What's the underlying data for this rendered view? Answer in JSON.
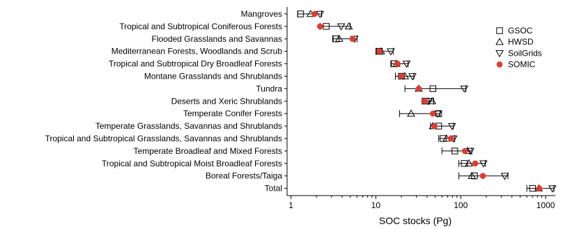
{
  "chart_data": {
    "type": "scatter",
    "xlabel": "SOC stocks (Pg)",
    "xscale": "log",
    "xlim": [
      1,
      1300
    ],
    "xticks": [
      1,
      10,
      100,
      1000
    ],
    "xtick_labels": [
      "1",
      "10",
      "100",
      "1000"
    ],
    "legend_position": "top-right",
    "grid": false,
    "categories": [
      "Mangroves",
      "Tropical and Subtropical Coniferous Forests",
      "Flooded Grasslands and Savannas",
      "Mediterranean Forests, Woodlands and Scrub",
      "Tropical and Subtropical Dry Broadleaf Forests",
      "Montane Grasslands and Shrublands",
      "Tundra",
      "Deserts and Xeric Shrublands",
      "Temperate Conifer Forests",
      "Temperate Grasslands, Savannas and Shrublands",
      "Tropical and Subtropical Grasslands, Savannas and Shrublands",
      "Temperate Broadleaf and Mixed Forests",
      "Tropical and Subtropical Moist Broadleaf Forests",
      "Boreal Forests/Taiga",
      "Total"
    ],
    "error_ranges": [
      [
        1.2,
        2.3
      ],
      [
        2.2,
        5.0
      ],
      [
        3.1,
        6.0
      ],
      [
        10.0,
        16.0
      ],
      [
        15.0,
        24.0
      ],
      [
        17.0,
        28.0
      ],
      [
        22.0,
        115.0
      ],
      [
        35.0,
        48.0
      ],
      [
        19.0,
        57.0
      ],
      [
        44.0,
        82.0
      ],
      [
        55.0,
        85.0
      ],
      [
        60.0,
        135.0
      ],
      [
        95.0,
        195.0
      ],
      [
        95.0,
        360.0
      ],
      [
        600.0,
        1250.0
      ]
    ],
    "series": [
      {
        "name": "GSOC",
        "marker": "square",
        "color": "#000000",
        "values": [
          1.3,
          2.6,
          3.4,
          11.0,
          16.5,
          20.0,
          47.0,
          39.0,
          55.0,
          55.0,
          62.0,
          85.0,
          110.0,
          145.0,
          700.0
        ]
      },
      {
        "name": "HWSD",
        "marker": "triangle-up",
        "color": "#000000",
        "values": [
          1.7,
          4.8,
          3.7,
          11.5,
          17.5,
          22.0,
          32.0,
          46.0,
          26.0,
          47.0,
          68.0,
          120.0,
          125.0,
          135.0,
          830.0
        ]
      },
      {
        "name": "SoilGrids",
        "marker": "triangle-down",
        "color": "#000000",
        "values": [
          2.2,
          3.9,
          5.6,
          15.0,
          23.0,
          27.0,
          110.0,
          42.0,
          54.0,
          79.0,
          82.0,
          130.0,
          185.0,
          330.0,
          1200.0
        ]
      },
      {
        "name": "SOMIC",
        "marker": "circle",
        "color": "#e03c31",
        "values": [
          1.9,
          2.2,
          5.3,
          11.0,
          18.0,
          20.0,
          32.0,
          38.0,
          47.0,
          49.0,
          77.0,
          112.0,
          148.0,
          182.0,
          840.0
        ]
      }
    ]
  }
}
